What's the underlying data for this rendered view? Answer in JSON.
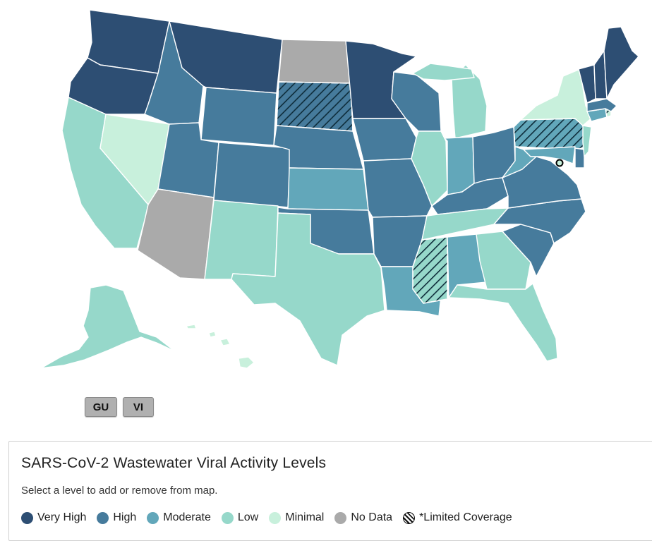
{
  "map": {
    "colors": {
      "very_high": "#2d4e73",
      "high": "#467b9c",
      "moderate": "#62a7ba",
      "low": "#96d8ca",
      "minimal": "#c8f0dc",
      "no_data": "#aaaaaa",
      "hatch": "#0e2c3a"
    },
    "states": [
      {
        "id": "WA",
        "level": "very_high",
        "limited": false
      },
      {
        "id": "OR",
        "level": "very_high",
        "limited": false
      },
      {
        "id": "CA",
        "level": "low",
        "limited": false
      },
      {
        "id": "NV",
        "level": "minimal",
        "limited": false
      },
      {
        "id": "ID",
        "level": "high",
        "limited": false
      },
      {
        "id": "MT",
        "level": "very_high",
        "limited": false
      },
      {
        "id": "WY",
        "level": "high",
        "limited": false
      },
      {
        "id": "UT",
        "level": "high",
        "limited": false
      },
      {
        "id": "AZ",
        "level": "no_data",
        "limited": false
      },
      {
        "id": "CO",
        "level": "high",
        "limited": false
      },
      {
        "id": "NM",
        "level": "low",
        "limited": false
      },
      {
        "id": "ND",
        "level": "no_data",
        "limited": false
      },
      {
        "id": "SD",
        "level": "high",
        "limited": true
      },
      {
        "id": "NE",
        "level": "high",
        "limited": false
      },
      {
        "id": "KS",
        "level": "moderate",
        "limited": false
      },
      {
        "id": "OK",
        "level": "high",
        "limited": false
      },
      {
        "id": "TX",
        "level": "low",
        "limited": false
      },
      {
        "id": "MN",
        "level": "very_high",
        "limited": false
      },
      {
        "id": "IA",
        "level": "high",
        "limited": false
      },
      {
        "id": "MO",
        "level": "high",
        "limited": false
      },
      {
        "id": "AR",
        "level": "high",
        "limited": false
      },
      {
        "id": "LA",
        "level": "moderate",
        "limited": false
      },
      {
        "id": "WI",
        "level": "high",
        "limited": false
      },
      {
        "id": "IL",
        "level": "low",
        "limited": false
      },
      {
        "id": "MI",
        "level": "low",
        "limited": false
      },
      {
        "id": "IN",
        "level": "moderate",
        "limited": false
      },
      {
        "id": "OH",
        "level": "high",
        "limited": false
      },
      {
        "id": "KY",
        "level": "high",
        "limited": false
      },
      {
        "id": "TN",
        "level": "low",
        "limited": false
      },
      {
        "id": "MS",
        "level": "low",
        "limited": true
      },
      {
        "id": "AL",
        "level": "moderate",
        "limited": false
      },
      {
        "id": "GA",
        "level": "low",
        "limited": false
      },
      {
        "id": "FL",
        "level": "low",
        "limited": false
      },
      {
        "id": "SC",
        "level": "high",
        "limited": false
      },
      {
        "id": "NC",
        "level": "high",
        "limited": false
      },
      {
        "id": "VA",
        "level": "high",
        "limited": false
      },
      {
        "id": "WV",
        "level": "moderate",
        "limited": false
      },
      {
        "id": "MD",
        "level": "moderate",
        "limited": false
      },
      {
        "id": "DE",
        "level": "high",
        "limited": false
      },
      {
        "id": "NJ",
        "level": "low",
        "limited": false
      },
      {
        "id": "PA",
        "level": "moderate",
        "limited": true
      },
      {
        "id": "NY",
        "level": "minimal",
        "limited": false
      },
      {
        "id": "CT",
        "level": "moderate",
        "limited": false
      },
      {
        "id": "RI",
        "level": "minimal",
        "limited": true
      },
      {
        "id": "MA",
        "level": "high",
        "limited": false
      },
      {
        "id": "VT",
        "level": "very_high",
        "limited": false
      },
      {
        "id": "NH",
        "level": "very_high",
        "limited": false
      },
      {
        "id": "ME",
        "level": "very_high",
        "limited": false
      },
      {
        "id": "AK",
        "level": "low",
        "limited": false
      },
      {
        "id": "HI",
        "level": "minimal",
        "limited": false
      },
      {
        "id": "DC",
        "level": "minimal",
        "limited": false
      }
    ]
  },
  "territories": {
    "gu_label": "GU",
    "vi_label": "VI"
  },
  "legend": {
    "title": "SARS-CoV-2 Wastewater Viral Activity Levels",
    "subtitle": "Select a level to add or remove from map.",
    "items": [
      {
        "label": "Very High",
        "color": "#2d4e73"
      },
      {
        "label": "High",
        "color": "#467b9c"
      },
      {
        "label": "Moderate",
        "color": "#62a7ba"
      },
      {
        "label": "Low",
        "color": "#96d8ca"
      },
      {
        "label": "Minimal",
        "color": "#c8f0dc"
      },
      {
        "label": "No Data",
        "color": "#aaaaaa"
      },
      {
        "label": "*Limited Coverage",
        "color": "hatch"
      }
    ]
  }
}
